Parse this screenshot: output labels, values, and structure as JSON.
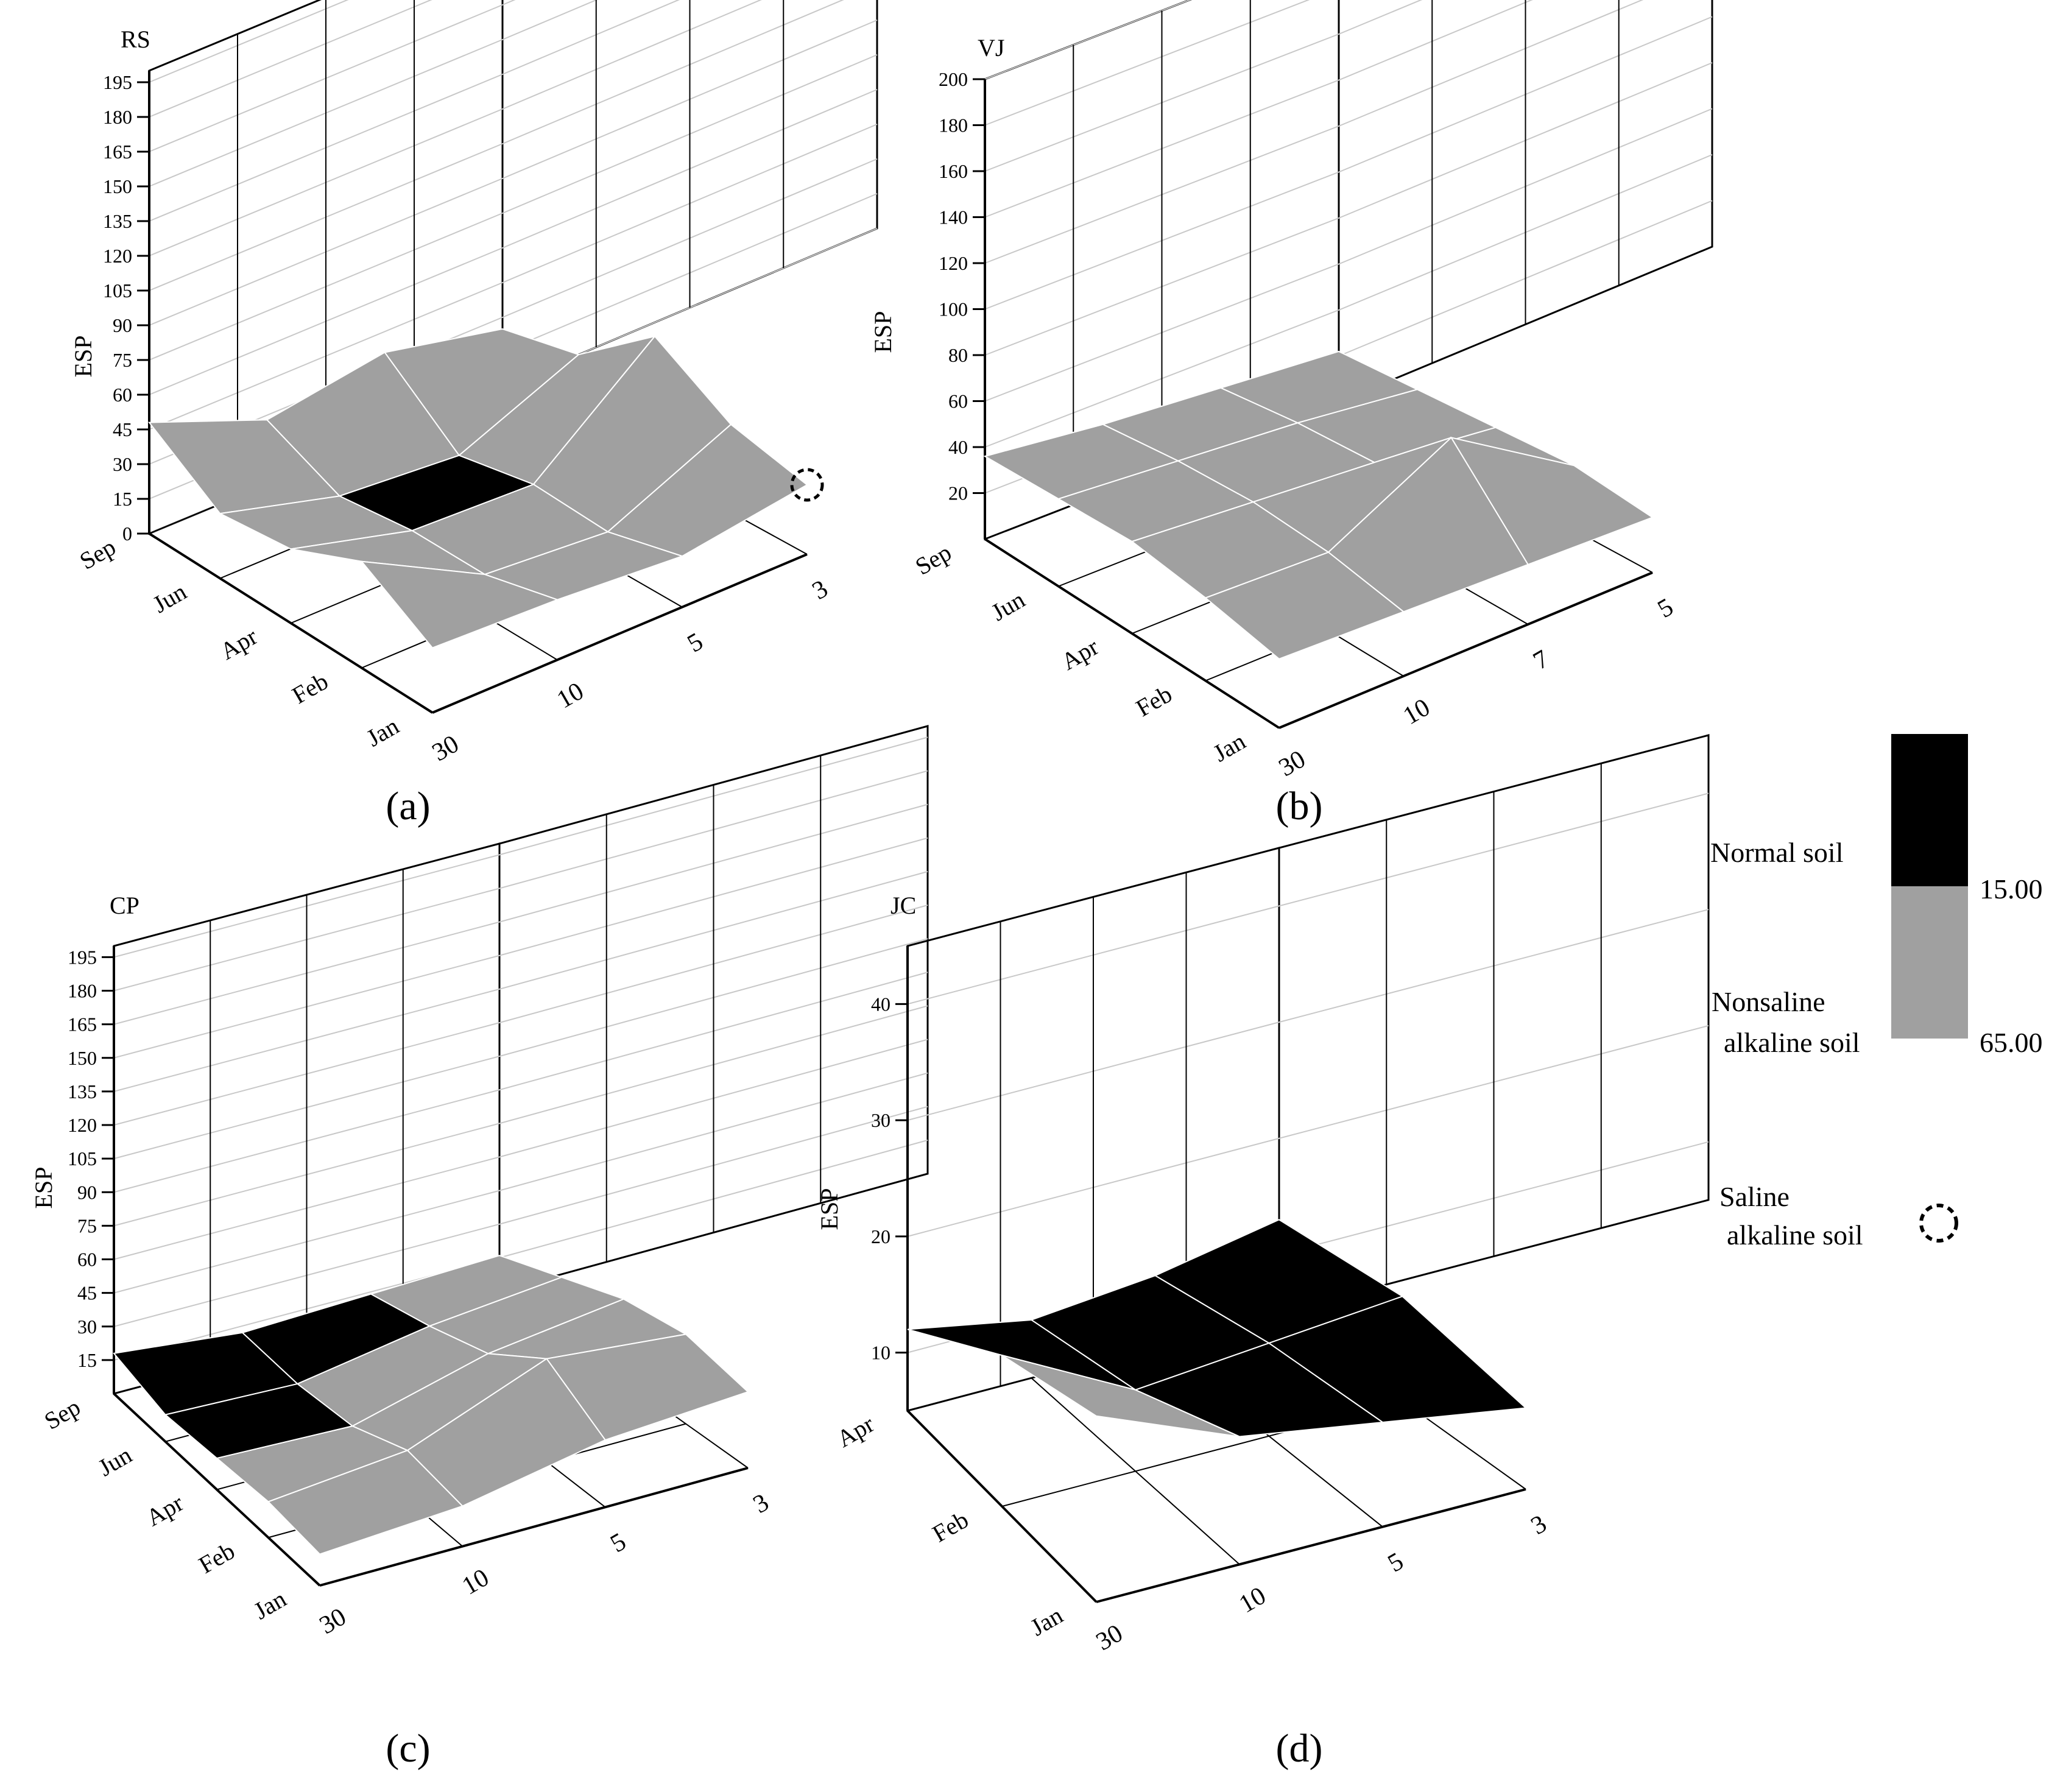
{
  "figure": {
    "legend": {
      "normal_label": "Normal soil",
      "nonsaline_label_line1": "Nonsaline",
      "nonsaline_label_line2": "alkaline soil",
      "saline_label_line1": "Saline",
      "saline_label_line2": "alkaline soil",
      "threshold_low": "15.00",
      "threshold_high": "65.00",
      "colors": {
        "normal": "#000000",
        "nonsaline": "#a0a0a0",
        "saline_marker": "#000000"
      }
    }
  },
  "chart_data": [
    {
      "type": "surface",
      "panel": "(a)",
      "title": "RS",
      "ylabel": "ESP",
      "y_ticks": [
        "0",
        "15",
        "30",
        "45",
        "60",
        "75",
        "90",
        "105",
        "120",
        "135",
        "150",
        "165",
        "180",
        "195"
      ],
      "months": [
        "Sep",
        "Jun",
        "Apr",
        "Feb",
        "Jan"
      ],
      "depths": [
        "30",
        "10",
        "5",
        "3"
      ],
      "ylim": [
        0,
        200
      ],
      "z": [
        [
          48,
          28,
          36,
          25
        ],
        [
          28,
          14,
          10,
          32
        ],
        [
          32,
          18,
          16,
          58
        ],
        [
          46,
          18,
          14,
          38
        ],
        [
          28,
          26,
          22,
          30
        ]
      ],
      "saline_marker": {
        "month": "Jan",
        "depth": "3"
      }
    },
    {
      "type": "surface",
      "panel": "(b)",
      "title": "VJ",
      "ylabel": "ESP",
      "y_ticks": [
        "20",
        "40",
        "60",
        "80",
        "100",
        "120",
        "140",
        "160",
        "180",
        "200"
      ],
      "months": [
        "Sep",
        "Jun",
        "Apr",
        "Feb",
        "Jan"
      ],
      "depths": [
        "30",
        "10",
        "7",
        "5"
      ],
      "ylim": [
        0,
        200
      ],
      "z": [
        [
          36,
          30,
          26,
          22
        ],
        [
          38,
          34,
          30,
          24
        ],
        [
          40,
          36,
          32,
          26
        ],
        [
          36,
          34,
          62,
          28
        ],
        [
          30,
          28,
          26,
          24
        ]
      ]
    },
    {
      "type": "surface",
      "panel": "(c)",
      "title": "CP",
      "ylabel": "ESP",
      "y_ticks": [
        "15",
        "30",
        "45",
        "60",
        "75",
        "90",
        "105",
        "120",
        "135",
        "150",
        "165",
        "180",
        "195"
      ],
      "months": [
        "Sep",
        "Jun",
        "Apr",
        "Feb",
        "Jan"
      ],
      "depths": [
        "30",
        "10",
        "5",
        "3"
      ],
      "ylim": [
        0,
        200
      ],
      "z": [
        [
          18,
          12,
          14,
          16
        ],
        [
          12,
          10,
          20,
          26
        ],
        [
          14,
          12,
          28,
          36
        ],
        [
          16,
          22,
          46,
          40
        ],
        [
          14,
          18,
          30,
          34
        ]
      ]
    },
    {
      "type": "surface",
      "panel": "(d)",
      "title": "JC",
      "ylabel": "ESP",
      "y_ticks": [
        "10",
        "20",
        "30",
        "40"
      ],
      "months": [
        "Apr",
        "Feb",
        "Jan"
      ],
      "depths": [
        "30",
        "10",
        "5",
        "3"
      ],
      "ylim": [
        5,
        45
      ],
      "z": [
        [
          12,
          10,
          11,
          13
        ],
        [
          18,
          12,
          13,
          14
        ],
        [
          21,
          16,
          14,
          12
        ]
      ]
    }
  ]
}
